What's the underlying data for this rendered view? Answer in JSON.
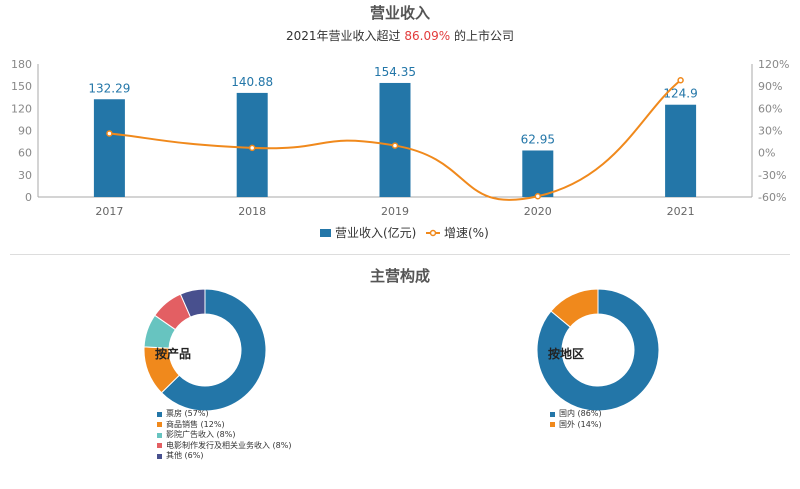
{
  "header": {
    "title": "营业收入",
    "subtitle_pre": "2021年营业收入超过",
    "subtitle_value": "86.09%",
    "subtitle_post": "的上市公司"
  },
  "section2": {
    "title": "主营构成"
  },
  "colors": {
    "bar": "#2376a8",
    "line": "#f0891c",
    "highlight": "#e23b3b"
  },
  "chart_data": [
    {
      "type": "bar",
      "categories": [
        "2017",
        "2018",
        "2019",
        "2020",
        "2021"
      ],
      "series": [
        {
          "name": "营业收入(亿元)",
          "type": "bar",
          "axis": "left",
          "values": [
            132.29,
            140.88,
            154.35,
            62.95,
            124.9
          ],
          "labels": [
            "132.29",
            "140.88",
            "154.35",
            "62.95",
            "124.9"
          ]
        },
        {
          "name": "增速(%)",
          "type": "line",
          "axis": "right",
          "values": [
            26,
            6.5,
            9.6,
            -59,
            98
          ]
        }
      ],
      "y_left": {
        "min": 0,
        "max": 180,
        "ticks": [
          "0",
          "30",
          "60",
          "90",
          "120",
          "150",
          "180"
        ]
      },
      "y_right": {
        "min": -60,
        "max": 120,
        "ticks": [
          "-60%",
          "-30%",
          "0%",
          "30%",
          "60%",
          "90%",
          "120%"
        ]
      },
      "legend": "bottom"
    },
    {
      "type": "pie",
      "label": "按产品",
      "slices": [
        {
          "name": "票房",
          "value": 57,
          "label": "票房 (57%)",
          "color": "#2376a8"
        },
        {
          "name": "商品销售",
          "value": 12,
          "label": "商品销售 (12%)",
          "color": "#f0891c"
        },
        {
          "name": "影院广告收入",
          "value": 8,
          "label": "影院广告收入 (8%)",
          "color": "#67c4c0"
        },
        {
          "name": "电影制作发行及相关业务收入",
          "value": 8,
          "label": "电影制作发行及相关业务收入 (8%)",
          "color": "#e35f63"
        },
        {
          "name": "其他",
          "value": 6,
          "label": "其他 (6%)",
          "color": "#48508e"
        }
      ]
    },
    {
      "type": "pie",
      "label": "按地区",
      "slices": [
        {
          "name": "国内",
          "value": 86,
          "label": "国内 (86%)",
          "color": "#2376a8"
        },
        {
          "name": "国外",
          "value": 14,
          "label": "国外 (14%)",
          "color": "#f0891c"
        }
      ]
    }
  ]
}
